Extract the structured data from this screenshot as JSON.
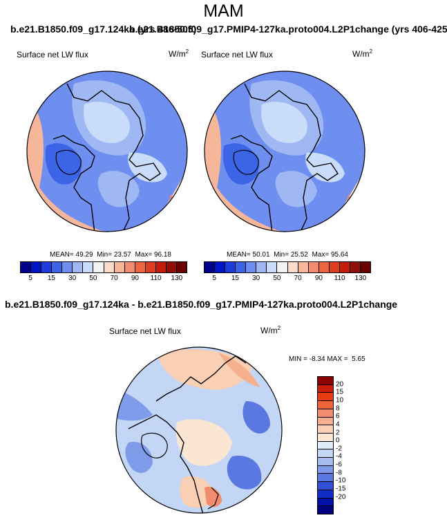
{
  "figure": {
    "season": "MAM",
    "left_case_title": "b.e21.B1850.f09_g17.124ka (yrs 486-505)",
    "right_case_title": "b.e21.B1850.f09_g17.PMIP4-127ka.proto004.L2P1change (yrs 406-425)",
    "diff_title": "b.e21.B1850.f09_g17.124ka - b.e21.B1850.f09_g17.PMIP4-127ka.proto004.L2P1change"
  },
  "panels": [
    {
      "variable": "Surface net LW flux",
      "units_base": "W/m",
      "units_exp": "2",
      "mean_label": "MEAN=",
      "mean": "49.29",
      "min_label": "Min=",
      "min": "23.57",
      "max_label": "Max=",
      "max": "96.18"
    },
    {
      "variable": "Surface net LW flux",
      "units_base": "W/m",
      "units_exp": "2",
      "mean_label": "MEAN=",
      "mean": "50.01",
      "min_label": "Min=",
      "min": "25.52",
      "max_label": "Max=",
      "max": "95.64"
    }
  ],
  "diff_panel": {
    "variable": "Surface net LW flux",
    "units_base": "W/m",
    "units_exp": "2",
    "min_label": "MIN =",
    "min": "-8.34",
    "max_label": "MAX =",
    "max": "5.65"
  },
  "colorbar_abs": {
    "colors": [
      "#00008b",
      "#0014c8",
      "#1e3cdc",
      "#3c64e6",
      "#6e8ef0",
      "#9fb8f4",
      "#c9dcfa",
      "#f2f2f2",
      "#fadcc8",
      "#f6b69a",
      "#f28c6e",
      "#ec6440",
      "#de3c1e",
      "#c01e0a",
      "#901008",
      "#6a0000"
    ],
    "tick_labels": [
      "5",
      "15",
      "30",
      "50",
      "70",
      "90",
      "110",
      "130"
    ]
  },
  "colorbar_diff": {
    "colors": [
      "#8b0000",
      "#c81e0a",
      "#e63c14",
      "#f0643c",
      "#f28c6e",
      "#f6b08e",
      "#fad0b4",
      "#fae6d2",
      "#e0ecfa",
      "#c4d6f6",
      "#a4bcf0",
      "#7e9cea",
      "#5a78e0",
      "#3250d6",
      "#142cc6",
      "#0010a8",
      "#00007e"
    ],
    "tick_labels": [
      "20",
      "15",
      "10",
      "8",
      "6",
      "4",
      "2",
      "0",
      "-2",
      "-4",
      "-6",
      "-8",
      "-10",
      "-15",
      "-20"
    ]
  }
}
